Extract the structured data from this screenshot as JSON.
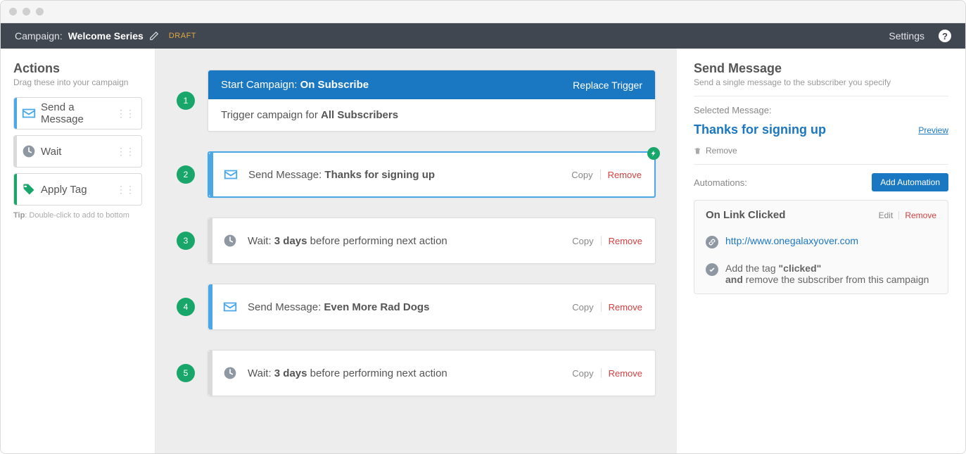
{
  "colors": {
    "toolbar_bg": "#414750",
    "accent_blue": "#1a77c2",
    "accent_light_blue": "#4aa8e8",
    "green": "#19a66b",
    "canvas_bg": "#ededed",
    "danger": "#d24040",
    "muted": "#888888",
    "draft": "#e0a642"
  },
  "toolbar": {
    "prefix": "Campaign: ",
    "campaign_name": "Welcome Series",
    "draft_label": "DRAFT",
    "settings_label": "Settings"
  },
  "actions_panel": {
    "title": "Actions",
    "subtitle": "Drag these into your campaign",
    "items": [
      {
        "label": "Send a Message",
        "icon": "mail",
        "accent": "#4aa8e8",
        "icon_color": "#4aa8e8"
      },
      {
        "label": "Wait",
        "icon": "clock",
        "accent": "#dadada",
        "icon_color": "#8f98a2"
      },
      {
        "label": "Apply Tag",
        "icon": "tag",
        "accent": "#19a66b",
        "icon_color": "#19a66b"
      }
    ],
    "tip_label": "Tip",
    "tip_text": ": Double-click to add to bottom"
  },
  "steps": [
    {
      "num": "1",
      "type": "trigger",
      "title_prefix": "Start Campaign: ",
      "title_bold": "On Subscribe",
      "replace_label": "Replace Trigger",
      "body_prefix": "Trigger campaign for ",
      "body_bold": "All Subscribers"
    },
    {
      "num": "2",
      "type": "send",
      "selected": true,
      "has_bolt": true,
      "label_prefix": "Send Message: ",
      "label_bold": "Thanks for signing up",
      "copy_label": "Copy",
      "remove_label": "Remove"
    },
    {
      "num": "3",
      "type": "wait",
      "label_prefix": "Wait: ",
      "label_bold": "3 days",
      "label_suffix": " before performing next action",
      "copy_label": "Copy",
      "remove_label": "Remove"
    },
    {
      "num": "4",
      "type": "send",
      "label_prefix": "Send Message: ",
      "label_bold": "Even More Rad Dogs",
      "copy_label": "Copy",
      "remove_label": "Remove"
    },
    {
      "num": "5",
      "type": "wait",
      "label_prefix": "Wait: ",
      "label_bold": "3 days",
      "label_suffix": " before performing next action",
      "copy_label": "Copy",
      "remove_label": "Remove"
    }
  ],
  "detail_panel": {
    "title": "Send Message",
    "subtitle": "Send a single message to the subscriber you specify",
    "selected_label": "Selected Message:",
    "message_title": "Thanks for signing up",
    "preview_label": "Preview",
    "remove_label": "Remove",
    "automations_label": "Automations:",
    "add_automation_label": "Add Automation",
    "automation": {
      "name": "On Link Clicked",
      "edit_label": "Edit",
      "remove_label": "Remove",
      "url": "http://www.onegalaxyover.com",
      "action_prefix": "Add the tag ",
      "action_tag": "\"clicked\"",
      "action_line2_bold": "and",
      "action_line2_rest": " remove the subscriber from this campaign"
    }
  }
}
